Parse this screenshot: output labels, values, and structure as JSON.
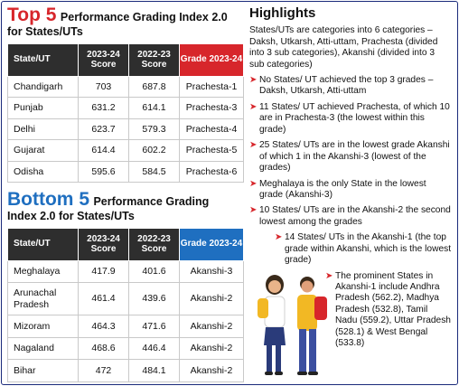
{
  "top": {
    "title_big": "Top 5",
    "title_rest": "Performance Grading Index 2.0",
    "title_line2": "for States/UTs",
    "headers": [
      "State/UT",
      "2023-24 Score",
      "2022-23 Score",
      "Grade 2023-24"
    ],
    "rows": [
      {
        "state": "Chandigarh",
        "s2324": "703",
        "s2223": "687.8",
        "grade": "Prachesta-1"
      },
      {
        "state": "Punjab",
        "s2324": "631.2",
        "s2223": "614.1",
        "grade": "Prachesta-3"
      },
      {
        "state": "Delhi",
        "s2324": "623.7",
        "s2223": "579.3",
        "grade": "Prachesta-4"
      },
      {
        "state": "Gujarat",
        "s2324": "614.4",
        "s2223": "602.2",
        "grade": "Prachesta-5"
      },
      {
        "state": "Odisha",
        "s2324": "595.6",
        "s2223": "584.5",
        "grade": "Prachesta-6"
      }
    ]
  },
  "bottom": {
    "title_big": "Bottom 5",
    "title_rest": "Performance Grading",
    "title_line2": "Index 2.0 for States/UTs",
    "headers": [
      "State/UT",
      "2023-24 Score",
      "2022-23 Score",
      "Grade 2023-24"
    ],
    "rows": [
      {
        "state": "Meghalaya",
        "s2324": "417.9",
        "s2223": "401.6",
        "grade": "Akanshi-3"
      },
      {
        "state": "Arunachal Pradesh",
        "s2324": "461.4",
        "s2223": "439.6",
        "grade": "Akanshi-2"
      },
      {
        "state": "Mizoram",
        "s2324": "464.3",
        "s2223": "471.6",
        "grade": "Akanshi-2"
      },
      {
        "state": "Nagaland",
        "s2324": "468.6",
        "s2223": "446.4",
        "grade": "Akanshi-2"
      },
      {
        "state": "Bihar",
        "s2324": "472",
        "s2223": "484.1",
        "grade": "Akanshi-2"
      }
    ]
  },
  "highlights": {
    "heading": "Highlights",
    "intro": "States/UTs are categories into 6 categories – Daksh, Utkarsh, Atti-uttam, Prachesta (divided into 3 sub categories), Akanshi (divided into 3 sub categories)",
    "bullets": [
      "No States/ UT achieved the top 3 grades – Daksh, Utkarsh, Atti-uttam",
      "11 States/ UT achieved Prachesta, of which 10 are in Prachesta-3 (the lowest within this grade)",
      "25 States/ UTs are in the lowest grade Akanshi of which 1 in the Akanshi-3 (lowest of the grades)",
      "Meghalaya is the only State in the lowest grade (Akanshi-3)",
      "10 States/ UTs are in the Akanshi-2 the second lowest among the grades",
      "14 States/ UTs in the Akanshi-1 (the top grade within Akanshi, which is the lowest grade)",
      "The prominent States in Akanshi-1 include Andhra Pradesh (562.2), Madhya Pradesh (532.8), Tamil Nadu (559.2), Uttar Pradesh (528.1) & West Bengal (533.8)"
    ]
  },
  "colors": {
    "red": "#d7262b",
    "blue": "#1f6fc0",
    "header_dark": "#2e2e2e"
  },
  "illustration": "students-with-backpacks"
}
